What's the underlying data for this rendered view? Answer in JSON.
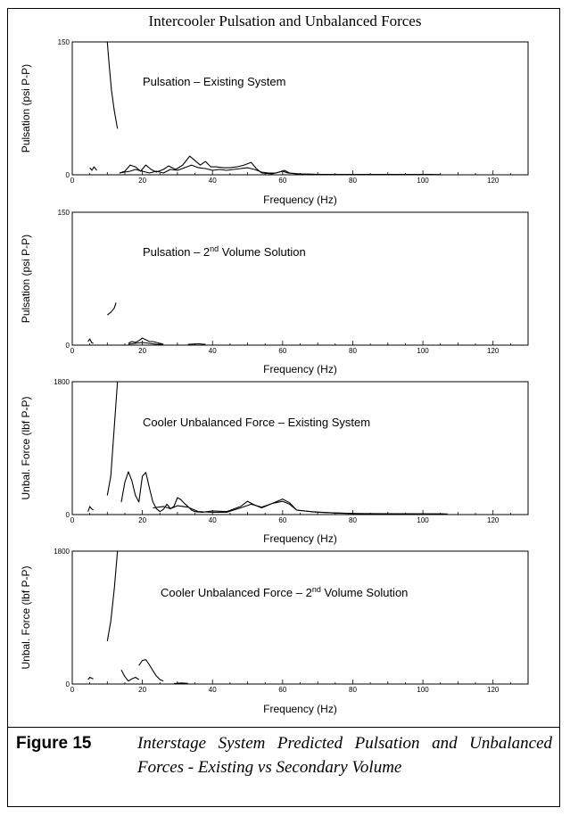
{
  "figure": {
    "title": "Intercooler Pulsation and Unbalanced Forces",
    "caption_number": "Figure 15",
    "caption_text": "Interstage System Predicted Pulsation and Unbalanced Forces - Existing vs Secondary Volume"
  },
  "chart_data": [
    {
      "type": "line",
      "title": "Pulsation – Existing System",
      "xlabel": "Frequency (Hz)",
      "ylabel": "Pulsation (psi P-P)",
      "xlim": [
        0,
        130
      ],
      "ylim": [
        0,
        150
      ],
      "xticks": [
        "0",
        "20",
        "40",
        "60",
        "80",
        "100",
        "120"
      ],
      "yticks": [
        "0",
        "150"
      ],
      "grid": false,
      "series": [
        {
          "segments": [
            [
              [
                5,
                8
              ],
              [
                5.6,
                5
              ],
              [
                6.2,
                9
              ],
              [
                7,
                5
              ]
            ],
            [
              [
                10,
                150
              ],
              [
                10.5,
                125
              ],
              [
                11.2,
                95
              ],
              [
                12,
                72
              ],
              [
                12.9,
                52
              ]
            ],
            [
              [
                13.5,
                2
              ],
              [
                15,
                4
              ],
              [
                16.5,
                11
              ],
              [
                18,
                9
              ],
              [
                19.5,
                4
              ],
              [
                21,
                11
              ],
              [
                22.5,
                6
              ],
              [
                24,
                3
              ],
              [
                26,
                6
              ],
              [
                27.5,
                10
              ],
              [
                29.5,
                6
              ],
              [
                31.5,
                11
              ],
              [
                33.5,
                21
              ],
              [
                35,
                16
              ],
              [
                36.5,
                11
              ],
              [
                38,
                15
              ],
              [
                39.5,
                9
              ],
              [
                41,
                9
              ],
              [
                43,
                8
              ],
              [
                45,
                8
              ],
              [
                47,
                9
              ],
              [
                49,
                11
              ],
              [
                51,
                14
              ],
              [
                52.5,
                7
              ],
              [
                54,
                2
              ],
              [
                57,
                1
              ],
              [
                59,
                3
              ],
              [
                60.5,
                5
              ],
              [
                62,
                2
              ],
              [
                65,
                1
              ],
              [
                70,
                0.5
              ],
              [
                80,
                0.3
              ],
              [
                90,
                0.3
              ],
              [
                100,
                0.3
              ],
              [
                103,
                0.3
              ]
            ],
            [
              [
                13.5,
                2
              ],
              [
                15,
                3
              ],
              [
                16.5,
                4
              ],
              [
                18,
                6
              ],
              [
                20,
                4
              ],
              [
                22,
                2
              ],
              [
                24,
                4
              ],
              [
                26,
                2
              ],
              [
                28,
                6
              ],
              [
                30,
                5
              ],
              [
                32,
                8
              ],
              [
                34,
                11
              ],
              [
                36,
                8
              ],
              [
                38,
                7
              ],
              [
                40,
                5
              ],
              [
                42,
                6
              ],
              [
                44,
                5
              ],
              [
                46,
                6
              ],
              [
                48,
                7
              ],
              [
                50,
                8
              ],
              [
                52,
                6
              ],
              [
                54,
                3
              ],
              [
                56,
                2
              ],
              [
                58,
                2
              ],
              [
                60,
                4
              ],
              [
                61.5,
                2
              ],
              [
                64,
                1
              ],
              [
                70,
                0.5
              ],
              [
                80,
                0.3
              ],
              [
                95,
                0.3
              ],
              [
                105,
                0.3
              ]
            ]
          ]
        }
      ]
    },
    {
      "type": "line",
      "title": "Pulsation – 2nd Volume Solution",
      "xlabel": "Frequency (Hz)",
      "ylabel": "Pulsation (psi P-P)",
      "xlim": [
        0,
        130
      ],
      "ylim": [
        0,
        150
      ],
      "xticks": [
        "0",
        "20",
        "40",
        "60",
        "80",
        "100",
        "120"
      ],
      "yticks": [
        "0",
        "150"
      ],
      "grid": false,
      "series": [
        {
          "segments": [
            [
              [
                4.5,
                4
              ],
              [
                5,
                7
              ],
              [
                5.5,
                3
              ],
              [
                6,
                2
              ]
            ],
            [
              [
                10,
                34
              ],
              [
                11,
                37
              ],
              [
                12,
                42
              ],
              [
                12.5,
                48
              ]
            ],
            [
              [
                16,
                2
              ],
              [
                17,
                4
              ],
              [
                18,
                3
              ],
              [
                19,
                5
              ],
              [
                20,
                8
              ],
              [
                21,
                6
              ],
              [
                22,
                4
              ],
              [
                23,
                4
              ],
              [
                24,
                3
              ],
              [
                25,
                2
              ],
              [
                26,
                1
              ]
            ],
            [
              [
                16,
                1
              ],
              [
                18,
                2
              ],
              [
                20,
                3
              ],
              [
                22,
                2
              ],
              [
                24,
                1
              ],
              [
                26,
                1
              ]
            ],
            [
              [
                33,
                0.8
              ],
              [
                36,
                1.5
              ],
              [
                38,
                0.8
              ]
            ]
          ]
        }
      ]
    },
    {
      "type": "line",
      "title": "Cooler Unbalanced Force – Existing System",
      "xlabel": "Frequency (Hz)",
      "ylabel": "Unbal. Force (lbf P-P)",
      "xlim": [
        0,
        130
      ],
      "ylim": [
        0,
        1800
      ],
      "xticks": [
        "0",
        "20",
        "40",
        "60",
        "80",
        "100",
        "120"
      ],
      "yticks": [
        "0",
        "1800"
      ],
      "grid": false,
      "series": [
        {
          "segments": [
            [
              [
                4.5,
                40
              ],
              [
                5,
                110
              ],
              [
                5.5,
                80
              ],
              [
                6,
                60
              ]
            ],
            [
              [
                10,
                260
              ],
              [
                11,
                520
              ],
              [
                12,
                1200
              ],
              [
                12.9,
                1800
              ]
            ],
            [
              [
                14,
                170
              ],
              [
                15,
                440
              ],
              [
                16,
                580
              ],
              [
                17,
                460
              ],
              [
                18,
                260
              ],
              [
                19,
                170
              ],
              [
                20,
                520
              ],
              [
                21,
                570
              ],
              [
                22,
                360
              ],
              [
                23,
                170
              ],
              [
                24,
                80
              ],
              [
                25,
                40
              ],
              [
                26,
                70
              ],
              [
                27,
                140
              ],
              [
                28,
                80
              ],
              [
                29,
                110
              ],
              [
                30,
                230
              ],
              [
                31,
                200
              ],
              [
                32,
                150
              ],
              [
                33,
                110
              ],
              [
                34,
                60
              ],
              [
                35,
                40
              ],
              [
                37,
                30
              ],
              [
                40,
                50
              ],
              [
                44,
                40
              ],
              [
                48,
                110
              ],
              [
                50,
                180
              ],
              [
                52,
                130
              ],
              [
                54,
                90
              ],
              [
                56,
                130
              ],
              [
                58,
                170
              ],
              [
                60,
                210
              ],
              [
                62,
                160
              ],
              [
                64,
                60
              ],
              [
                68,
                40
              ],
              [
                75,
                20
              ],
              [
                85,
                10
              ],
              [
                100,
                10
              ],
              [
                107,
                8
              ]
            ],
            [
              [
                23,
                90
              ],
              [
                26,
                110
              ],
              [
                28,
                80
              ],
              [
                30,
                120
              ],
              [
                33,
                100
              ],
              [
                36,
                40
              ],
              [
                40,
                30
              ],
              [
                44,
                30
              ],
              [
                48,
                90
              ],
              [
                51,
                140
              ],
              [
                54,
                100
              ],
              [
                57,
                150
              ],
              [
                60,
                180
              ],
              [
                62,
                140
              ],
              [
                64,
                60
              ],
              [
                70,
                30
              ],
              [
                80,
                15
              ],
              [
                95,
                10
              ],
              [
                106,
                8
              ]
            ]
          ]
        }
      ]
    },
    {
      "type": "line",
      "title": "Cooler Unbalanced Force – 2nd Volume Solution",
      "xlabel": "Frequency (Hz)",
      "ylabel": "Unbal. Force (lbf P-P)",
      "xlim": [
        0,
        130
      ],
      "ylim": [
        0,
        1800
      ],
      "xticks": [
        "0",
        "20",
        "40",
        "60",
        "80",
        "100",
        "120"
      ],
      "yticks": [
        "0",
        "1800"
      ],
      "grid": false,
      "series": [
        {
          "segments": [
            [
              [
                4.5,
                60
              ],
              [
                5,
                90
              ],
              [
                5.5,
                80
              ],
              [
                6,
                70
              ]
            ],
            [
              [
                10,
                580
              ],
              [
                11,
                850
              ],
              [
                12,
                1300
              ],
              [
                12.9,
                1800
              ]
            ],
            [
              [
                14,
                190
              ],
              [
                15,
                100
              ],
              [
                16,
                40
              ],
              [
                17,
                70
              ],
              [
                18,
                90
              ],
              [
                19,
                60
              ]
            ],
            [
              [
                19,
                250
              ],
              [
                20,
                320
              ],
              [
                21,
                330
              ],
              [
                22,
                260
              ],
              [
                23,
                180
              ],
              [
                24,
                110
              ],
              [
                25,
                60
              ],
              [
                26,
                40
              ]
            ],
            [
              [
                29,
                5
              ],
              [
                31,
                15
              ],
              [
                33,
                8
              ]
            ]
          ]
        }
      ]
    }
  ]
}
